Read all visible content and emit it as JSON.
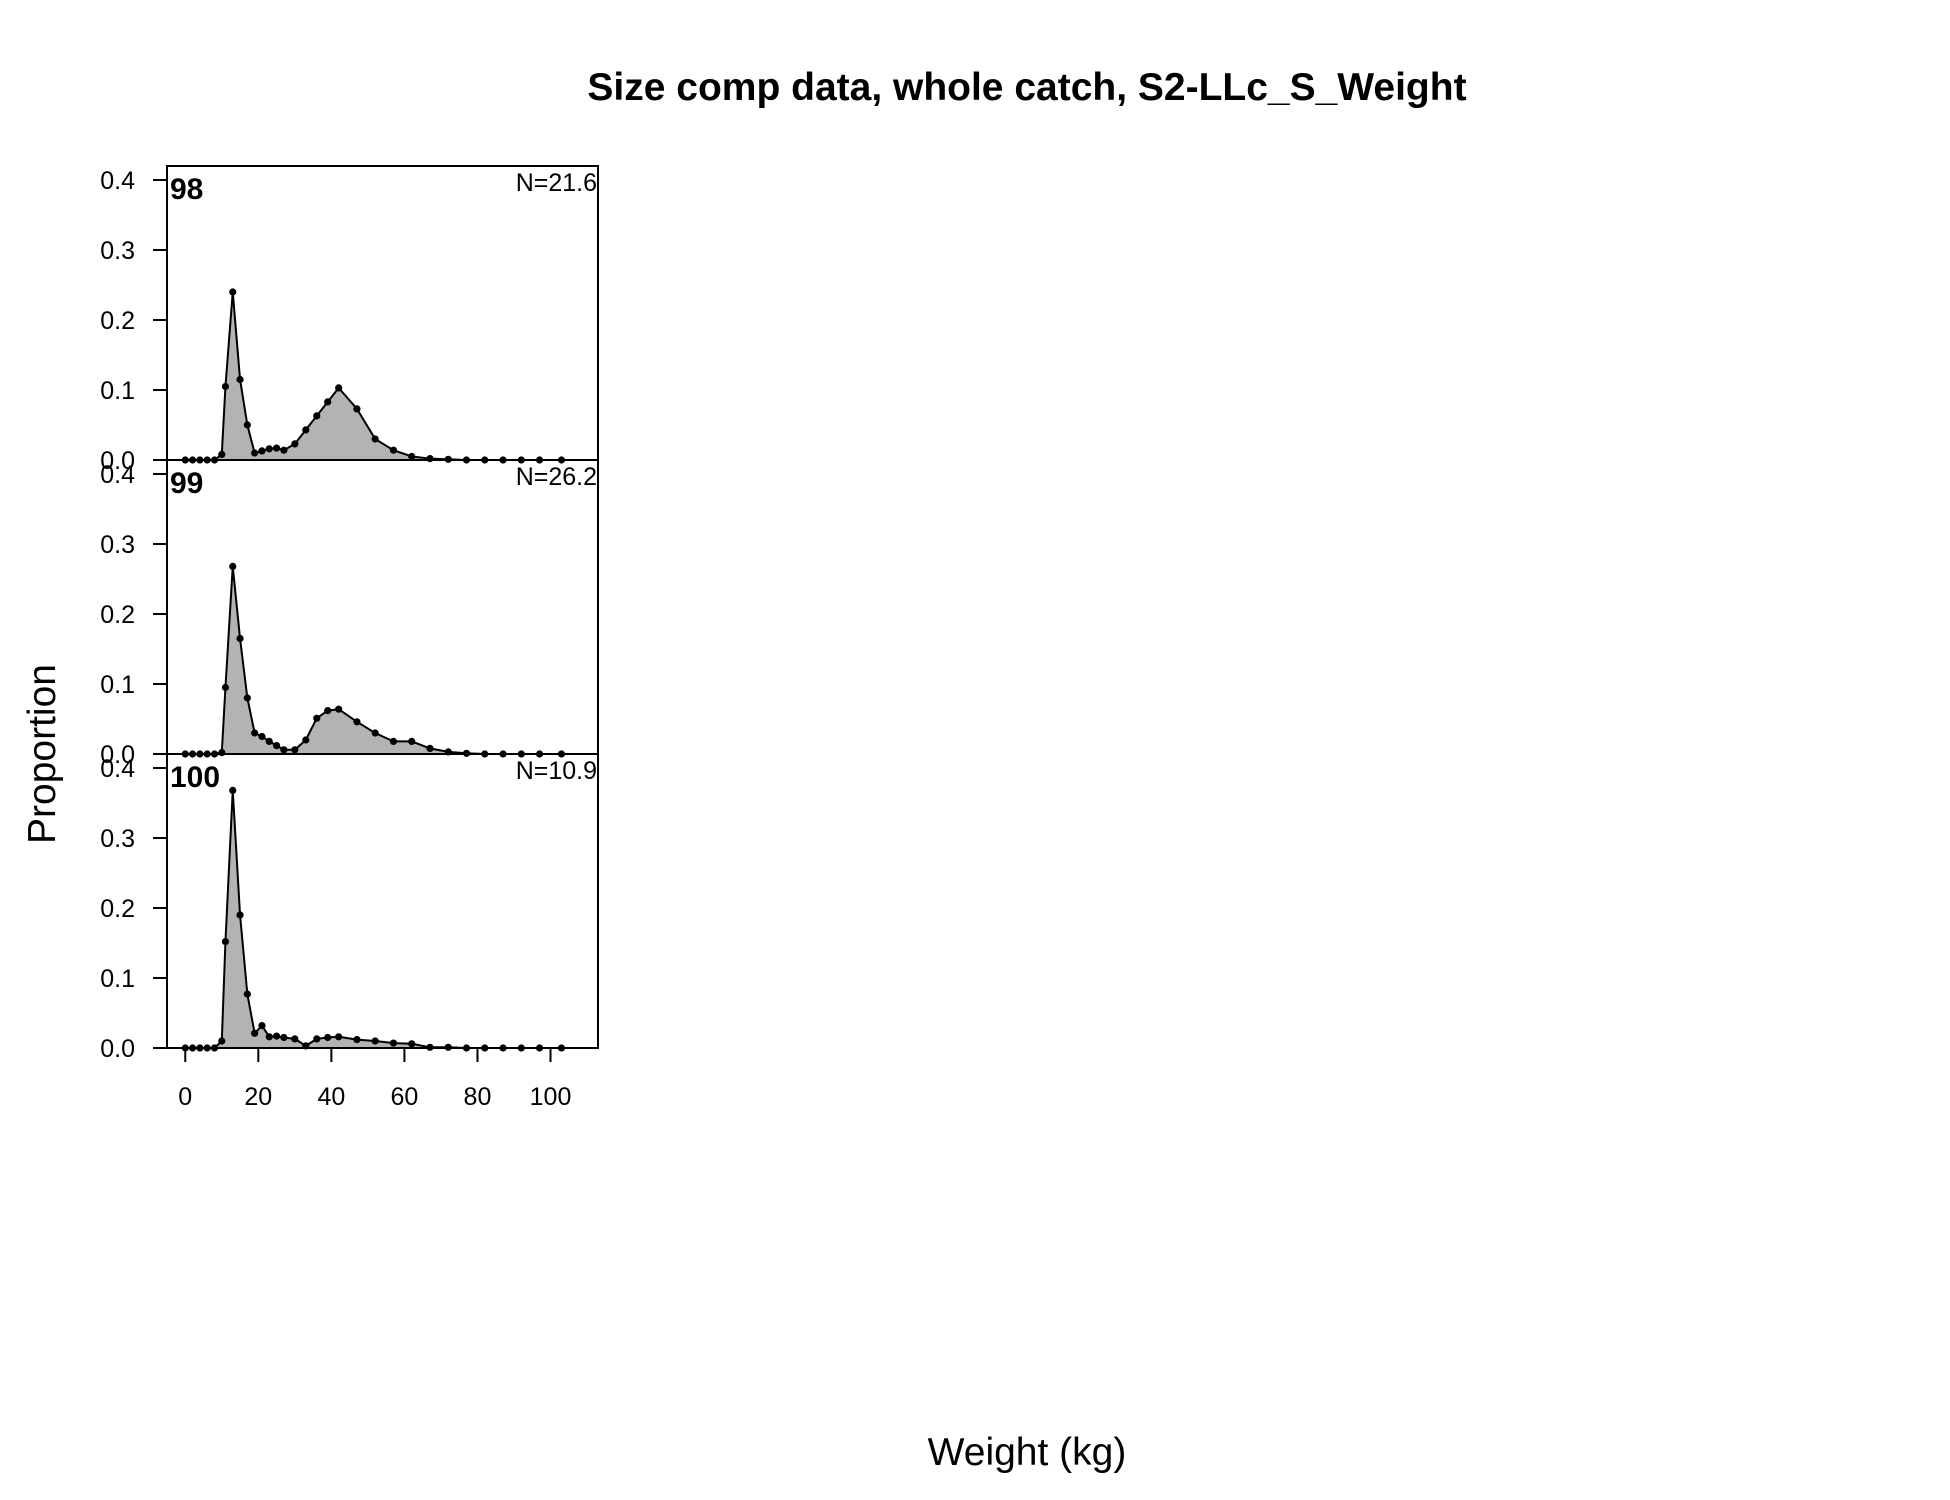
{
  "chart_data": {
    "type": "area",
    "title": "Size comp data, whole catch, S2-LLc_S_Weight",
    "xlabel": "Weight (kg)",
    "ylabel": "Proportion",
    "xlim": [
      -5,
      113
    ],
    "ylim": [
      0,
      0.42
    ],
    "x_ticks": [
      "0",
      "20",
      "40",
      "60",
      "80",
      "100"
    ],
    "y_ticks": [
      "0.0",
      "0.1",
      "0.2",
      "0.3",
      "0.4"
    ],
    "fill_color": "#b3b3b3",
    "line_color": "#000000",
    "x": [
      0,
      2,
      4,
      6,
      8,
      10,
      11,
      13,
      15,
      17,
      19,
      21,
      23,
      25,
      27,
      30,
      33,
      36,
      39,
      42,
      47,
      52,
      57,
      62,
      67,
      72,
      77,
      82,
      87,
      92,
      97,
      103
    ],
    "panels": [
      {
        "label": "98",
        "n_label": "N=21.6",
        "values": [
          0,
          0,
          0,
          0,
          0,
          0.008,
          0.105,
          0.24,
          0.115,
          0.05,
          0.01,
          0.013,
          0.016,
          0.017,
          0.014,
          0.023,
          0.043,
          0.063,
          0.083,
          0.103,
          0.073,
          0.03,
          0.014,
          0.005,
          0.002,
          0.001,
          0,
          0,
          0,
          0,
          0,
          0
        ]
      },
      {
        "label": "99",
        "n_label": "N=26.2",
        "values": [
          0,
          0,
          0,
          0,
          0,
          0.002,
          0.095,
          0.268,
          0.165,
          0.08,
          0.03,
          0.025,
          0.018,
          0.012,
          0.006,
          0.006,
          0.02,
          0.051,
          0.062,
          0.064,
          0.046,
          0.03,
          0.018,
          0.018,
          0.008,
          0.003,
          0.001,
          0,
          0,
          0,
          0,
          0
        ]
      },
      {
        "label": "100",
        "n_label": "N=10.9",
        "values": [
          0,
          0,
          0,
          0,
          0,
          0.01,
          0.152,
          0.368,
          0.19,
          0.077,
          0.021,
          0.032,
          0.016,
          0.017,
          0.015,
          0.013,
          0.003,
          0.013,
          0.015,
          0.016,
          0.012,
          0.01,
          0.007,
          0.006,
          0.001,
          0.001,
          0,
          0,
          0,
          0,
          0,
          0
        ]
      }
    ]
  }
}
